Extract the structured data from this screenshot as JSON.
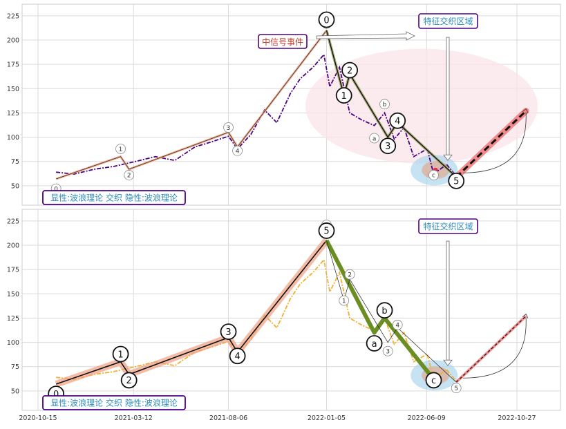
{
  "chart_data": [
    {
      "type": "line",
      "panel": "top",
      "x_ticks": [
        "2020-10-15",
        "2021-03-12",
        "2021-08-06",
        "2022-01-05",
        "2022-06-09",
        "2022-10-27"
      ],
      "yticks": [
        50,
        75,
        100,
        125,
        150,
        175,
        200,
        225
      ],
      "ylim": [
        30,
        237
      ],
      "grid": true,
      "price": [
        [
          "2020-11-12",
          64
        ],
        [
          "2020-12-10",
          62
        ],
        [
          "2021-01-10",
          67
        ],
        [
          "2021-02-10",
          70
        ],
        [
          "2021-03-15",
          75
        ],
        [
          "2021-04-15",
          80
        ],
        [
          "2021-05-15",
          76
        ],
        [
          "2021-06-15",
          90
        ],
        [
          "2021-07-10",
          95
        ],
        [
          "2021-08-06",
          101
        ],
        [
          "2021-08-20",
          88
        ],
        [
          "2021-09-10",
          103
        ],
        [
          "2021-10-01",
          128
        ],
        [
          "2021-10-20",
          115
        ],
        [
          "2021-11-10",
          145
        ],
        [
          "2021-11-25",
          160
        ],
        [
          "2021-12-15",
          172
        ],
        [
          "2022-01-01",
          185
        ],
        [
          "2022-01-10",
          152
        ],
        [
          "2022-01-25",
          172
        ],
        [
          "2022-02-10",
          125
        ],
        [
          "2022-02-28",
          118
        ],
        [
          "2022-03-20",
          112
        ],
        [
          "2022-04-05",
          125
        ],
        [
          "2022-04-20",
          98
        ],
        [
          "2022-05-05",
          110
        ],
        [
          "2022-05-20",
          80
        ],
        [
          "2022-06-10",
          88
        ],
        [
          "2022-06-20",
          62
        ],
        [
          "2022-07-10",
          72
        ],
        [
          "2022-07-25",
          60
        ]
      ],
      "wave_primary": [
        [
          "2020-11-12",
          57
        ],
        [
          "2021-02-20",
          80
        ],
        [
          "2021-03-05",
          67
        ],
        [
          "2021-08-06",
          105
        ],
        [
          "2021-08-20",
          90
        ],
        [
          "2022-01-05",
          210
        ],
        [
          "2022-02-01",
          143
        ],
        [
          "2022-02-10",
          165
        ],
        [
          "2022-04-10",
          100
        ],
        [
          "2022-04-25",
          115
        ],
        [
          "2022-07-25",
          59
        ]
      ],
      "wave_secondary": [
        [
          "2022-01-05",
          210
        ],
        [
          "2022-02-01",
          143
        ],
        [
          "2022-02-10",
          165
        ],
        [
          "2022-04-10",
          100
        ],
        [
          "2022-04-25",
          115
        ],
        [
          "2022-07-25",
          59
        ]
      ],
      "forecast": [
        [
          "2022-07-25",
          59
        ],
        [
          "2022-11-10",
          127
        ]
      ],
      "labels_small": [
        {
          "text": "0",
          "x": "2020-11-12",
          "y": 47
        },
        {
          "text": "1",
          "x": "2021-02-20",
          "y": 88
        },
        {
          "text": "2",
          "x": "2021-03-05",
          "y": 61
        },
        {
          "text": "3",
          "x": "2021-08-06",
          "y": 110
        },
        {
          "text": "4",
          "x": "2021-08-20",
          "y": 86
        },
        {
          "text": "a",
          "x": "2022-03-20",
          "y": 99
        },
        {
          "text": "b",
          "x": "2022-04-05",
          "y": 134
        },
        {
          "text": "c",
          "x": "2022-06-20",
          "y": 61
        },
        {
          "text": "5",
          "x": "2022-01-05",
          "y": 217
        }
      ],
      "labels_big": [
        {
          "text": "0",
          "x": "2022-01-05",
          "y": 221
        },
        {
          "text": "1",
          "x": "2022-02-01",
          "y": 143
        },
        {
          "text": "2",
          "x": "2022-02-10",
          "y": 169
        },
        {
          "text": "3",
          "x": "2022-04-10",
          "y": 91
        },
        {
          "text": "4",
          "x": "2022-04-25",
          "y": 117
        },
        {
          "text": "5",
          "x": "2022-07-25",
          "y": 55
        }
      ],
      "event_label": "中信号事件",
      "zone_label": "特征交织区域",
      "legend": "显性:波浪理论 交织 隐性:波浪理论"
    },
    {
      "type": "line",
      "panel": "bottom",
      "x_ticks": [
        "2020-10-15",
        "2021-03-12",
        "2021-08-06",
        "2022-01-05",
        "2022-06-09",
        "2022-10-27"
      ],
      "yticks": [
        50,
        75,
        100,
        125,
        150,
        175,
        200,
        225
      ],
      "ylim": [
        30,
        237
      ],
      "grid": true,
      "price": [
        [
          "2020-11-12",
          64
        ],
        [
          "2020-12-10",
          62
        ],
        [
          "2021-01-10",
          67
        ],
        [
          "2021-02-10",
          70
        ],
        [
          "2021-03-15",
          75
        ],
        [
          "2021-04-15",
          80
        ],
        [
          "2021-05-15",
          76
        ],
        [
          "2021-06-15",
          90
        ],
        [
          "2021-07-10",
          95
        ],
        [
          "2021-08-06",
          101
        ],
        [
          "2021-08-20",
          88
        ],
        [
          "2021-09-10",
          103
        ],
        [
          "2021-10-01",
          128
        ],
        [
          "2021-10-20",
          115
        ],
        [
          "2021-11-10",
          145
        ],
        [
          "2021-11-25",
          160
        ],
        [
          "2021-12-15",
          172
        ],
        [
          "2022-01-01",
          185
        ],
        [
          "2022-01-10",
          152
        ],
        [
          "2022-01-25",
          172
        ],
        [
          "2022-02-10",
          125
        ],
        [
          "2022-02-28",
          118
        ],
        [
          "2022-03-20",
          112
        ],
        [
          "2022-04-05",
          125
        ],
        [
          "2022-04-20",
          98
        ],
        [
          "2022-05-05",
          110
        ],
        [
          "2022-05-20",
          80
        ],
        [
          "2022-06-10",
          88
        ],
        [
          "2022-06-20",
          62
        ],
        [
          "2022-07-10",
          72
        ],
        [
          "2022-07-25",
          60
        ]
      ],
      "wave_primary": [
        [
          "2020-11-12",
          57
        ],
        [
          "2021-02-20",
          80
        ],
        [
          "2021-03-05",
          67
        ],
        [
          "2021-08-06",
          105
        ],
        [
          "2021-08-20",
          90
        ],
        [
          "2022-01-05",
          205
        ]
      ],
      "wave_secondary": [
        [
          "2022-01-05",
          205
        ],
        [
          "2022-03-20",
          110
        ],
        [
          "2022-04-05",
          125
        ],
        [
          "2022-06-20",
          62
        ]
      ],
      "wave_thin": [
        [
          "2022-01-05",
          205
        ],
        [
          "2022-02-01",
          143
        ],
        [
          "2022-02-10",
          165
        ],
        [
          "2022-04-10",
          100
        ],
        [
          "2022-04-25",
          115
        ],
        [
          "2022-07-25",
          59
        ]
      ],
      "forecast": [
        [
          "2022-07-25",
          59
        ],
        [
          "2022-11-10",
          127
        ]
      ],
      "labels_small": [
        {
          "text": "1",
          "x": "2022-02-01",
          "y": 143
        },
        {
          "text": "2",
          "x": "2022-02-10",
          "y": 170
        },
        {
          "text": "3",
          "x": "2022-04-10",
          "y": 91
        },
        {
          "text": "4",
          "x": "2022-04-25",
          "y": 118
        },
        {
          "text": "5",
          "x": "2022-07-25",
          "y": 53
        },
        {
          "text": "0",
          "x": "2022-01-05",
          "y": 221
        }
      ],
      "labels_big": [
        {
          "text": "0",
          "x": "2020-11-12",
          "y": 47
        },
        {
          "text": "1",
          "x": "2021-02-20",
          "y": 88
        },
        {
          "text": "2",
          "x": "2021-03-05",
          "y": 61
        },
        {
          "text": "3",
          "x": "2021-08-06",
          "y": 111
        },
        {
          "text": "4",
          "x": "2021-08-20",
          "y": 86
        },
        {
          "text": "5",
          "x": "2022-01-05",
          "y": 215
        },
        {
          "text": "a",
          "x": "2022-03-20",
          "y": 99
        },
        {
          "text": "b",
          "x": "2022-04-05",
          "y": 133
        },
        {
          "text": "c",
          "x": "2022-06-20",
          "y": 61
        }
      ],
      "zone_label": "特征交织区域",
      "legend": "显性:波浪理论 交织 隐性:波浪理论"
    }
  ],
  "colors": {
    "top_price": "#4b0082",
    "bottom_price": "#f0b030",
    "wave_band": "#f0a080",
    "wave_green": "#6b8e23",
    "wave_olive": "#a0a870",
    "forecast_band": "#f08080",
    "ellipse_pink": "#f9e3e8",
    "ellipse_blue": "#a8d4ee",
    "label_text": "#2e8bc0",
    "label_border": "#4b0082",
    "event_text": "#c0392b"
  }
}
